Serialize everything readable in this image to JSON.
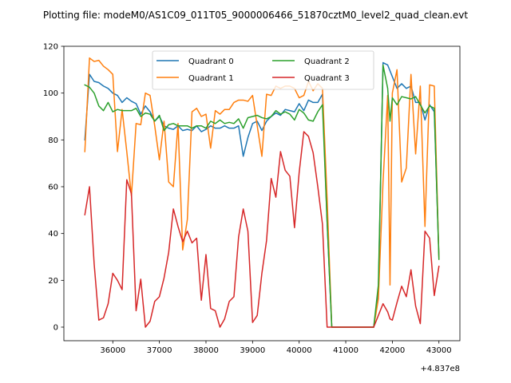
{
  "chart_data": {
    "type": "line",
    "title": "Plotting file: modeM0/AS1C09_011T05_9000006466_51870cztM0_level2_quad_clean.evt",
    "xlabel": "",
    "ylabel": "",
    "x_offset_label": "+4.837e8",
    "xlim": [
      34950,
      43450
    ],
    "ylim": [
      -5.8,
      120
    ],
    "x_ticks": [
      36000,
      37000,
      38000,
      39000,
      40000,
      41000,
      42000,
      43000
    ],
    "x_tick_labels": [
      "36000",
      "37000",
      "38000",
      "39000",
      "40000",
      "41000",
      "42000",
      "43000"
    ],
    "y_ticks": [
      0,
      20,
      40,
      60,
      80,
      100,
      120
    ],
    "y_tick_labels": [
      "0",
      "20",
      "40",
      "60",
      "80",
      "100",
      "120"
    ],
    "grid": false,
    "legend_position": "top-center",
    "series": [
      {
        "name": "Quadrant 0",
        "color": "#1f77b4",
        "points": [
          [
            35400,
            80
          ],
          [
            35500,
            108
          ],
          [
            35600,
            105
          ],
          [
            35700,
            104.5
          ],
          [
            35800,
            103
          ],
          [
            35900,
            102
          ],
          [
            36000,
            100
          ],
          [
            36100,
            99
          ],
          [
            36200,
            96
          ],
          [
            36300,
            98
          ],
          [
            36400,
            96.5
          ],
          [
            36500,
            95.5
          ],
          [
            36600,
            91
          ],
          [
            36700,
            94.5
          ],
          [
            36800,
            92
          ],
          [
            36900,
            88
          ],
          [
            37000,
            90
          ],
          [
            37100,
            86
          ],
          [
            37200,
            85
          ],
          [
            37300,
            84.5
          ],
          [
            37400,
            86
          ],
          [
            37500,
            84
          ],
          [
            37600,
            84.5
          ],
          [
            37700,
            84
          ],
          [
            37800,
            86
          ],
          [
            37900,
            83.5
          ],
          [
            38000,
            84.5
          ],
          [
            38100,
            86
          ],
          [
            38200,
            85
          ],
          [
            38300,
            85
          ],
          [
            38400,
            86
          ],
          [
            38500,
            85
          ],
          [
            38600,
            85
          ],
          [
            38700,
            86
          ],
          [
            38800,
            73
          ],
          [
            38900,
            81
          ],
          [
            39000,
            87
          ],
          [
            39100,
            88
          ],
          [
            39200,
            84
          ],
          [
            39300,
            88
          ],
          [
            39400,
            90
          ],
          [
            39500,
            91.5
          ],
          [
            39600,
            90.5
          ],
          [
            39700,
            93
          ],
          [
            39800,
            92.5
          ],
          [
            39900,
            92
          ],
          [
            40000,
            95.5
          ],
          [
            40100,
            92.5
          ],
          [
            40200,
            97
          ],
          [
            40300,
            96
          ],
          [
            40400,
            96
          ],
          [
            40500,
            99.5
          ],
          [
            40600,
            45
          ],
          [
            40700,
            0
          ],
          [
            41600,
            0
          ],
          [
            41700,
            15
          ],
          [
            41800,
            113
          ],
          [
            41900,
            112
          ],
          [
            42000,
            107
          ],
          [
            42100,
            102
          ],
          [
            42200,
            104
          ],
          [
            42300,
            102
          ],
          [
            42400,
            103
          ],
          [
            42500,
            96
          ],
          [
            42600,
            96
          ],
          [
            42700,
            88.5
          ],
          [
            42800,
            95
          ],
          [
            42900,
            92
          ],
          [
            43000,
            30
          ]
        ]
      },
      {
        "name": "Quadrant 1",
        "color": "#ff7f0e",
        "points": [
          [
            35400,
            75
          ],
          [
            35500,
            115
          ],
          [
            35600,
            113.5
          ],
          [
            35700,
            114
          ],
          [
            35800,
            111.5
          ],
          [
            35900,
            110
          ],
          [
            36000,
            108
          ],
          [
            36100,
            75
          ],
          [
            36200,
            93
          ],
          [
            36300,
            75
          ],
          [
            36400,
            56
          ],
          [
            36500,
            87
          ],
          [
            36600,
            86.5
          ],
          [
            36700,
            100
          ],
          [
            36800,
            99
          ],
          [
            36900,
            86
          ],
          [
            37000,
            71.5
          ],
          [
            37100,
            88
          ],
          [
            37200,
            62
          ],
          [
            37300,
            60
          ],
          [
            37400,
            87
          ],
          [
            37500,
            33
          ],
          [
            37600,
            46
          ],
          [
            37700,
            92
          ],
          [
            37800,
            93.5
          ],
          [
            37900,
            90
          ],
          [
            38000,
            91
          ],
          [
            38100,
            76.5
          ],
          [
            38200,
            92.5
          ],
          [
            38300,
            91
          ],
          [
            38400,
            93
          ],
          [
            38500,
            93
          ],
          [
            38600,
            96
          ],
          [
            38700,
            97
          ],
          [
            38800,
            97
          ],
          [
            38900,
            96.5
          ],
          [
            39000,
            99
          ],
          [
            39100,
            86
          ],
          [
            39200,
            73
          ],
          [
            39300,
            99.5
          ],
          [
            39400,
            99
          ],
          [
            39500,
            103
          ],
          [
            39600,
            102
          ],
          [
            39700,
            103
          ],
          [
            39800,
            103
          ],
          [
            39900,
            102
          ],
          [
            40000,
            98
          ],
          [
            40100,
            99
          ],
          [
            40200,
            105
          ],
          [
            40300,
            101
          ],
          [
            40400,
            104
          ],
          [
            40500,
            102
          ],
          [
            40600,
            55
          ],
          [
            40700,
            0
          ],
          [
            41600,
            0
          ],
          [
            41700,
            12
          ],
          [
            41800,
            62
          ],
          [
            41900,
            99
          ],
          [
            41950,
            18
          ],
          [
            42000,
            100
          ],
          [
            42100,
            110
          ],
          [
            42200,
            62
          ],
          [
            42300,
            68
          ],
          [
            42400,
            108
          ],
          [
            42500,
            74
          ],
          [
            42600,
            103
          ],
          [
            42700,
            43
          ],
          [
            42800,
            103.5
          ],
          [
            42900,
            103
          ],
          [
            43000,
            29
          ]
        ]
      },
      {
        "name": "Quadrant 2",
        "color": "#2ca02c",
        "points": [
          [
            35400,
            103.5
          ],
          [
            35500,
            102.5
          ],
          [
            35600,
            100
          ],
          [
            35700,
            94.5
          ],
          [
            35800,
            92.5
          ],
          [
            35900,
            96
          ],
          [
            36000,
            92
          ],
          [
            36100,
            93
          ],
          [
            36200,
            92.5
          ],
          [
            36300,
            92.5
          ],
          [
            36400,
            92.5
          ],
          [
            36500,
            93.5
          ],
          [
            36600,
            90
          ],
          [
            36700,
            91.5
          ],
          [
            36800,
            91
          ],
          [
            36900,
            88
          ],
          [
            37000,
            90.5
          ],
          [
            37100,
            84
          ],
          [
            37200,
            86.5
          ],
          [
            37300,
            87
          ],
          [
            37400,
            86
          ],
          [
            37500,
            86
          ],
          [
            37600,
            86
          ],
          [
            37700,
            85
          ],
          [
            37800,
            86
          ],
          [
            37900,
            86
          ],
          [
            38000,
            85
          ],
          [
            38100,
            88
          ],
          [
            38200,
            87
          ],
          [
            38300,
            88.5
          ],
          [
            38400,
            87
          ],
          [
            38500,
            87.5
          ],
          [
            38600,
            87
          ],
          [
            38700,
            89
          ],
          [
            38800,
            85
          ],
          [
            38900,
            89.5
          ],
          [
            39000,
            90
          ],
          [
            39100,
            90.5
          ],
          [
            39200,
            89.5
          ],
          [
            39300,
            89
          ],
          [
            39400,
            90
          ],
          [
            39500,
            92.5
          ],
          [
            39600,
            91
          ],
          [
            39700,
            92
          ],
          [
            39800,
            91
          ],
          [
            39900,
            88.5
          ],
          [
            40000,
            93
          ],
          [
            40100,
            91.5
          ],
          [
            40200,
            88.5
          ],
          [
            40300,
            88
          ],
          [
            40400,
            92
          ],
          [
            40500,
            95
          ],
          [
            40600,
            45
          ],
          [
            40700,
            0
          ],
          [
            41600,
            0
          ],
          [
            41700,
            18
          ],
          [
            41800,
            112
          ],
          [
            41900,
            102
          ],
          [
            41950,
            88
          ],
          [
            42000,
            98
          ],
          [
            42100,
            95
          ],
          [
            42200,
            98.5
          ],
          [
            42300,
            98
          ],
          [
            42400,
            97.5
          ],
          [
            42500,
            98.5
          ],
          [
            42600,
            95
          ],
          [
            42700,
            91.5
          ],
          [
            42800,
            94.5
          ],
          [
            42900,
            93.5
          ],
          [
            43000,
            29
          ]
        ]
      },
      {
        "name": "Quadrant 3",
        "color": "#d62728",
        "points": [
          [
            35400,
            48
          ],
          [
            35500,
            60
          ],
          [
            35600,
            27
          ],
          [
            35700,
            3
          ],
          [
            35800,
            4
          ],
          [
            35900,
            10
          ],
          [
            36000,
            23
          ],
          [
            36100,
            20
          ],
          [
            36200,
            16
          ],
          [
            36300,
            63
          ],
          [
            36400,
            57
          ],
          [
            36500,
            7
          ],
          [
            36600,
            20.5
          ],
          [
            36700,
            0
          ],
          [
            36800,
            2.5
          ],
          [
            36900,
            11
          ],
          [
            37000,
            13
          ],
          [
            37100,
            21
          ],
          [
            37200,
            32
          ],
          [
            37300,
            50.5
          ],
          [
            37400,
            43
          ],
          [
            37500,
            36.5
          ],
          [
            37600,
            41
          ],
          [
            37700,
            36
          ],
          [
            37800,
            38
          ],
          [
            37900,
            11.5
          ],
          [
            38000,
            31
          ],
          [
            38100,
            8
          ],
          [
            38200,
            7
          ],
          [
            38300,
            0
          ],
          [
            38400,
            3.5
          ],
          [
            38500,
            11
          ],
          [
            38600,
            13
          ],
          [
            38700,
            38.5
          ],
          [
            38800,
            50.5
          ],
          [
            38900,
            41
          ],
          [
            39000,
            2
          ],
          [
            39100,
            5
          ],
          [
            39200,
            23
          ],
          [
            39300,
            37
          ],
          [
            39400,
            63.5
          ],
          [
            39500,
            55.5
          ],
          [
            39600,
            75
          ],
          [
            39700,
            67
          ],
          [
            39800,
            64.5
          ],
          [
            39900,
            42.5
          ],
          [
            40000,
            66
          ],
          [
            40100,
            83.5
          ],
          [
            40200,
            81.5
          ],
          [
            40300,
            74.5
          ],
          [
            40400,
            60
          ],
          [
            40500,
            44
          ],
          [
            40600,
            0
          ],
          [
            40700,
            0
          ],
          [
            41600,
            0
          ],
          [
            41700,
            5
          ],
          [
            41800,
            10
          ],
          [
            41900,
            6.5
          ],
          [
            41950,
            3.5
          ],
          [
            42000,
            3
          ],
          [
            42100,
            10.5
          ],
          [
            42200,
            17.5
          ],
          [
            42300,
            13
          ],
          [
            42400,
            24.5
          ],
          [
            42500,
            9
          ],
          [
            42600,
            1.5
          ],
          [
            42700,
            41
          ],
          [
            42800,
            38
          ],
          [
            42900,
            13.5
          ],
          [
            43000,
            26
          ]
        ]
      }
    ]
  }
}
